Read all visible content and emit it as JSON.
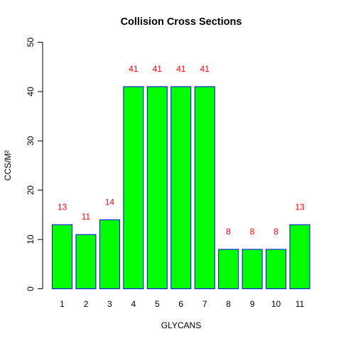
{
  "chart_data": {
    "type": "bar",
    "title": "Collision Cross Sections",
    "xlabel": "GLYCANS",
    "ylabel": "CCS/M²",
    "categories": [
      "1",
      "2",
      "3",
      "4",
      "5",
      "6",
      "7",
      "8",
      "9",
      "10",
      "11"
    ],
    "values": [
      13,
      11,
      14,
      41,
      41,
      41,
      41,
      8,
      8,
      8,
      13
    ],
    "data_labels": [
      "13",
      "11",
      "14",
      "41",
      "41",
      "41",
      "41",
      "8",
      "8",
      "8",
      "13"
    ],
    "ylim": [
      0,
      50
    ],
    "yticks": [
      0,
      10,
      20,
      30,
      40,
      50
    ],
    "grid": false,
    "legend": "none",
    "colors": {
      "bar_fill": "#00ff00",
      "bar_border": "#0000ff",
      "data_label": "#ff0000",
      "axis": "#000000"
    }
  }
}
